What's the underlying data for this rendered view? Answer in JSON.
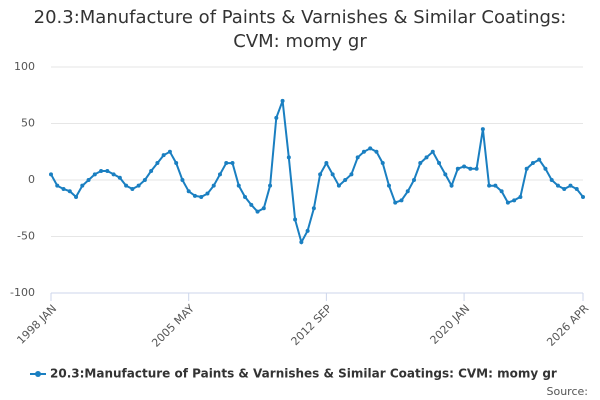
{
  "chart_data": {
    "type": "line",
    "title": "20.3:Manufacture of Paints & Varnishes & Similar Coatings: CVM: momy gr",
    "source": "Source:",
    "categories": [
      "1998 JAN",
      null,
      null,
      null,
      null,
      null,
      null,
      null,
      null,
      null,
      null,
      null,
      null,
      null,
      null,
      null,
      null,
      null,
      null,
      null,
      null,
      null,
      "2005 MAY",
      null,
      null,
      null,
      null,
      null,
      null,
      null,
      null,
      null,
      null,
      null,
      null,
      null,
      null,
      null,
      null,
      null,
      null,
      null,
      null,
      null,
      "2012 SEP",
      null,
      null,
      null,
      null,
      null,
      null,
      null,
      null,
      null,
      null,
      null,
      null,
      null,
      null,
      null,
      null,
      null,
      null,
      null,
      null,
      null,
      "2020 JAN",
      null,
      null,
      null,
      null,
      null,
      null,
      null,
      null,
      null,
      null,
      null,
      null,
      null,
      null,
      null,
      null,
      null,
      null,
      "2026 APR"
    ],
    "series": [
      {
        "name": "20.3:Manufacture of Paints & Varnishes & Similar Coatings: CVM: momy gr",
        "color": "#1a7fc1",
        "values": [
          5,
          -5,
          -8,
          -10,
          -15,
          -5,
          0,
          5,
          8,
          8,
          5,
          2,
          -5,
          -8,
          -5,
          0,
          8,
          15,
          22,
          25,
          15,
          0,
          -10,
          -14,
          -15,
          -12,
          -5,
          5,
          15,
          15,
          -5,
          -15,
          -22,
          -28,
          -25,
          -5,
          55,
          70,
          20,
          -35,
          -55,
          -45,
          -25,
          5,
          15,
          5,
          -5,
          0,
          5,
          20,
          25,
          28,
          25,
          15,
          -5,
          -20,
          -18,
          -10,
          0,
          15,
          20,
          25,
          15,
          5,
          -5,
          10,
          12,
          10,
          10,
          45,
          -5,
          -5,
          -10,
          -20,
          -18,
          -15,
          10,
          15,
          18,
          10,
          0,
          -5,
          -8,
          -5,
          -8,
          -15
        ]
      }
    ],
    "ylim": [
      -100,
      100
    ],
    "yticks": [
      -100,
      -50,
      0,
      50,
      100
    ],
    "grid": true
  }
}
